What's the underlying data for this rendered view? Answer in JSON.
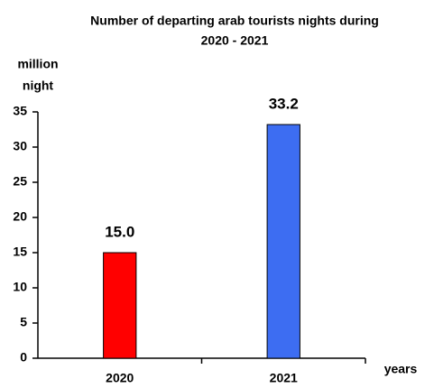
{
  "chart_data": {
    "type": "bar",
    "title": [
      "Number of  departing arab tourists nights  during",
      "2020 - 2021"
    ],
    "y_label": [
      "million",
      "night"
    ],
    "x_label": "years",
    "categories": [
      "2020",
      "2021"
    ],
    "values": [
      15.0,
      33.2
    ],
    "value_labels": [
      "15.0",
      "33.2"
    ],
    "colors": [
      "#ff0000",
      "#3d6df2"
    ],
    "ylim": [
      0,
      35
    ],
    "yticks": [
      0,
      5,
      10,
      15,
      20,
      25,
      30,
      35
    ],
    "grid": false
  }
}
